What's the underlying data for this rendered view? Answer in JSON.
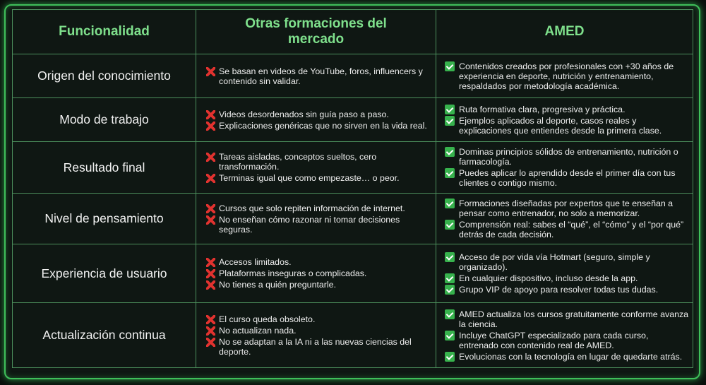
{
  "table": {
    "header": [
      "Funcionalidad",
      "Otras formaciones del mercado",
      "AMED"
    ],
    "rows": [
      {
        "feature": "Origen del conocimiento",
        "others": [
          "Se basan en videos de YouTube, foros, influencers y contenido sin validar."
        ],
        "amed": [
          "Contenidos creados por profesionales con +30 años de experiencia en deporte, nutrición y entrenamiento, respaldados por metodología académica."
        ]
      },
      {
        "feature": "Modo de trabajo",
        "others": [
          "Videos desordenados sin guía paso a paso.",
          "Explicaciones genéricas que no sirven en la vida real."
        ],
        "amed": [
          "Ruta formativa clara, progresiva y práctica.",
          "Ejemplos aplicados al deporte, casos reales y explicaciones que entiendes desde la primera clase."
        ]
      },
      {
        "feature": "Resultado final",
        "others": [
          "Tareas aisladas, conceptos sueltos, cero transformación.",
          "Terminas igual que como empezaste… o peor."
        ],
        "amed": [
          "Dominas principios sólidos de entrenamiento, nutrición o farmacología.",
          "Puedes aplicar lo aprendido desde el primer día con tus clientes o contigo mismo."
        ]
      },
      {
        "feature": "Nivel de pensamiento",
        "others": [
          "Cursos que solo repiten información de internet.",
          "No enseñan cómo razonar ni tomar decisiones seguras."
        ],
        "amed": [
          "Formaciones diseñadas por expertos que te enseñan a pensar como entrenador, no solo a memorizar.",
          "Comprensión real: sabes el “qué”, el “cómo” y el “por qué” detrás de cada decisión."
        ]
      },
      {
        "feature": "Experiencia de usuario",
        "others": [
          "Accesos limitados.",
          "Plataformas inseguras o complicadas.",
          "No tienes a quién preguntarle."
        ],
        "amed": [
          "Acceso de por vida vía Hotmart (seguro, simple y organizado).",
          "En cualquier dispositivo, incluso desde la app.",
          "Grupo VIP de apoyo para resolver todas tus dudas."
        ]
      },
      {
        "feature": "Actualización continua",
        "others": [
          "El curso queda obsoleto.",
          "No actualizan nada.",
          "No se adaptan a la IA ni a las nuevas ciencias del deporte."
        ],
        "amed": [
          "AMED actualiza los cursos gratuitamente conforme avanza la ciencia.",
          "Incluye ChatGPT especializado para cada curso, entrenado con contenido real de AMED.",
          "Evolucionas con la tecnología en lugar de quedarte atrás."
        ]
      }
    ]
  }
}
